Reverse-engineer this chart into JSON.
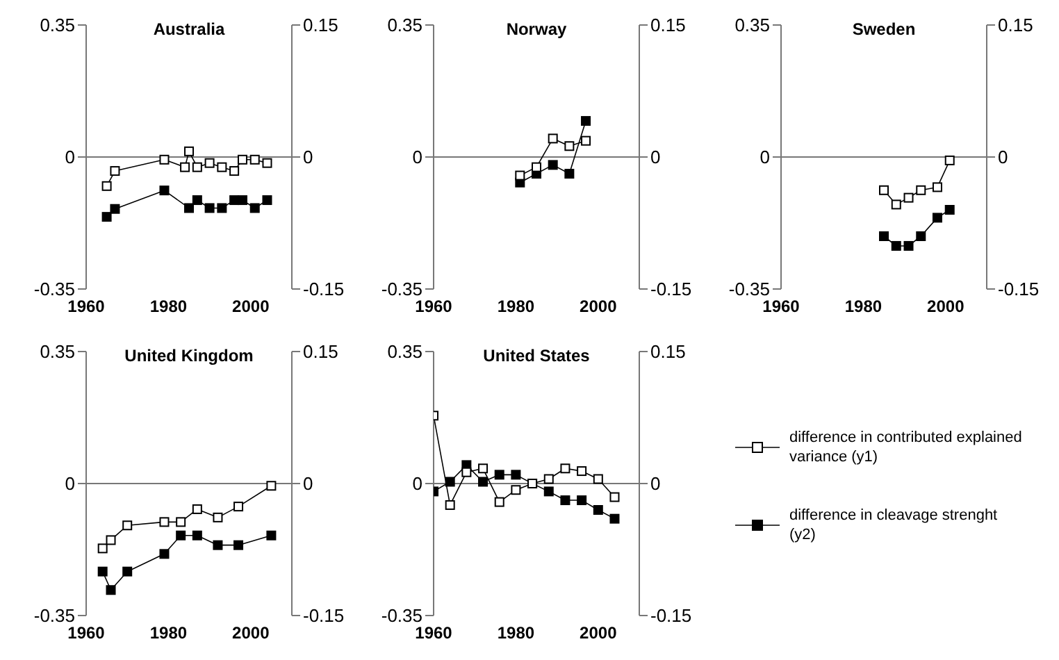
{
  "chart_data": [
    {
      "type": "line",
      "title": "Australia",
      "xlim": [
        1960,
        2010
      ],
      "xticks": [
        1960,
        1980,
        2000
      ],
      "ylim": [
        -0.35,
        0.35
      ],
      "yticks": [
        -0.35,
        0,
        0.35
      ],
      "y2lim": [
        -0.15,
        0.15
      ],
      "y2ticks": [
        -0.15,
        0,
        0.15
      ],
      "grid": false,
      "marker": "square",
      "ref_lines": [
        {
          "axis": "y",
          "value": 0
        }
      ],
      "series": [
        {
          "color": "#ffffff",
          "x": [
            1965,
            1967,
            1979,
            1984,
            1985,
            1987,
            1990,
            1993,
            1996,
            1998,
            2001,
            2004
          ],
          "values": [
            -0.077,
            -0.037,
            -0.007,
            -0.027,
            0.015,
            -0.027,
            -0.016,
            -0.027,
            -0.037,
            -0.007,
            -0.007,
            -0.016
          ]
        },
        {
          "color": "#000000",
          "axis": "y2",
          "x": [
            1965,
            1967,
            1979,
            1984,
            1985,
            1987,
            1990,
            1993,
            1996,
            1998,
            2001,
            2004
          ],
          "values": [
            -0.068,
            -0.059,
            -0.038,
            null,
            -0.058,
            -0.049,
            -0.058,
            -0.058,
            -0.049,
            -0.049,
            -0.058,
            -0.049
          ]
        }
      ]
    },
    {
      "type": "line",
      "title": "Norway",
      "xlim": [
        1960,
        2010
      ],
      "xticks": [
        1960,
        1980,
        2000
      ],
      "ylim": [
        -0.35,
        0.35
      ],
      "yticks": [
        -0.35,
        0,
        0.35
      ],
      "y2lim": [
        -0.15,
        0.15
      ],
      "y2ticks": [
        -0.15,
        0,
        0.15
      ],
      "grid": false,
      "marker": "square",
      "ref_lines": [
        {
          "axis": "y",
          "value": 0
        }
      ],
      "series": [
        {
          "color": "#ffffff",
          "x": [
            1981,
            1985,
            1989,
            1993,
            1997
          ],
          "values": [
            -0.049,
            -0.027,
            0.049,
            0.029,
            0.043
          ]
        },
        {
          "color": "#000000",
          "axis": "y2",
          "x": [
            1981,
            1985,
            1989,
            1993,
            1997
          ],
          "values": [
            -0.029,
            -0.019,
            -0.009,
            -0.019,
            0.041
          ]
        }
      ]
    },
    {
      "type": "line",
      "title": "Sweden",
      "xlim": [
        1960,
        2010
      ],
      "xticks": [
        1960,
        1980,
        2000
      ],
      "ylim": [
        -0.35,
        0.35
      ],
      "yticks": [
        -0.35,
        0,
        0.35
      ],
      "y2lim": [
        -0.15,
        0.15
      ],
      "y2ticks": [
        -0.15,
        0,
        0.15
      ],
      "grid": false,
      "marker": "square",
      "ref_lines": [
        {
          "axis": "y",
          "value": 0
        }
      ],
      "series": [
        {
          "color": "#ffffff",
          "x": [
            1985,
            1988,
            1991,
            1994,
            1998,
            2001
          ],
          "values": [
            -0.088,
            -0.126,
            -0.108,
            -0.088,
            -0.08,
            -0.009
          ]
        },
        {
          "color": "#000000",
          "axis": "y2",
          "x": [
            1985,
            1988,
            1991,
            1994,
            1998,
            2001
          ],
          "values": [
            -0.09,
            -0.101,
            -0.101,
            -0.09,
            -0.069,
            -0.06
          ]
        }
      ]
    },
    {
      "type": "line",
      "title": "United Kingdom",
      "xlim": [
        1960,
        2010
      ],
      "xticks": [
        1960,
        1980,
        2000
      ],
      "ylim": [
        -0.35,
        0.35
      ],
      "yticks": [
        -0.35,
        0,
        0.35
      ],
      "y2lim": [
        -0.15,
        0.15
      ],
      "y2ticks": [
        -0.15,
        0,
        0.15
      ],
      "grid": false,
      "marker": "square",
      "ref_lines": [
        {
          "axis": "y",
          "value": 0
        }
      ],
      "series": [
        {
          "color": "#ffffff",
          "x": [
            1964,
            1966,
            1970,
            1979,
            1983,
            1987,
            1992,
            1997,
            2005
          ],
          "values": [
            -0.172,
            -0.15,
            -0.111,
            -0.102,
            -0.102,
            -0.068,
            -0.09,
            -0.061,
            -0.006
          ]
        },
        {
          "color": "#000000",
          "axis": "y2",
          "x": [
            1964,
            1966,
            1970,
            1979,
            1983,
            1987,
            1992,
            1997,
            2005
          ],
          "values": [
            -0.1,
            -0.121,
            -0.1,
            -0.08,
            -0.059,
            -0.059,
            -0.07,
            -0.07,
            -0.059
          ]
        }
      ]
    },
    {
      "type": "line",
      "title": "United States",
      "xlim": [
        1960,
        2010
      ],
      "xticks": [
        1960,
        1980,
        2000
      ],
      "ylim": [
        -0.35,
        0.35
      ],
      "yticks": [
        -0.35,
        0,
        0.35
      ],
      "y2lim": [
        -0.15,
        0.15
      ],
      "y2ticks": [
        -0.15,
        0,
        0.15
      ],
      "grid": false,
      "marker": "square",
      "legend": "right",
      "ref_lines": [
        {
          "axis": "y",
          "value": 0
        }
      ],
      "series": [
        {
          "name": "difference in contributed explained variance (y1)",
          "color": "#ffffff",
          "x": [
            1960,
            1964,
            1968,
            1972,
            1976,
            1980,
            1984,
            1988,
            1992,
            1996,
            2000,
            2004
          ],
          "values": [
            0.18,
            -0.057,
            0.03,
            0.04,
            -0.049,
            -0.017,
            0,
            0.012,
            0.04,
            0.033,
            0.012,
            -0.036
          ]
        },
        {
          "name": "difference in cleavage strenght (y2)",
          "color": "#000000",
          "axis": "y2",
          "x": [
            1960,
            1964,
            1968,
            1972,
            1976,
            1980,
            1984,
            1988,
            1992,
            1996,
            2000,
            2004
          ],
          "values": [
            -0.009,
            0.002,
            0.021,
            0.002,
            0.01,
            0.01,
            0,
            -0.009,
            -0.019,
            -0.019,
            -0.03,
            -0.04
          ]
        }
      ]
    }
  ]
}
